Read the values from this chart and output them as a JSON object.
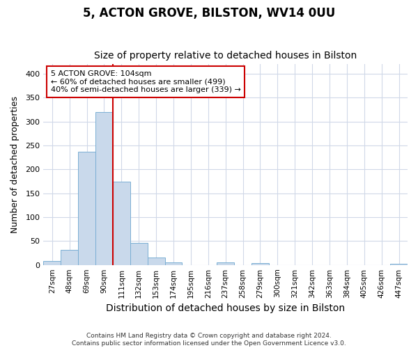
{
  "title": "5, ACTON GROVE, BILSTON, WV14 0UU",
  "subtitle": "Size of property relative to detached houses in Bilston",
  "xlabel": "Distribution of detached houses by size in Bilston",
  "ylabel": "Number of detached properties",
  "bar_labels": [
    "27sqm",
    "48sqm",
    "69sqm",
    "90sqm",
    "111sqm",
    "132sqm",
    "153sqm",
    "174sqm",
    "195sqm",
    "216sqm",
    "237sqm",
    "258sqm",
    "279sqm",
    "300sqm",
    "321sqm",
    "342sqm",
    "363sqm",
    "384sqm",
    "405sqm",
    "426sqm",
    "447sqm"
  ],
  "bar_values": [
    8,
    32,
    237,
    320,
    175,
    46,
    15,
    5,
    0,
    0,
    5,
    0,
    4,
    0,
    0,
    0,
    0,
    0,
    0,
    0,
    3
  ],
  "bar_color": "#c9d9eb",
  "bar_edgecolor": "#7aafd4",
  "vline_x_index": 3.5,
  "vline_color": "#cc0000",
  "annotation_text": "5 ACTON GROVE: 104sqm\n← 60% of detached houses are smaller (499)\n40% of semi-detached houses are larger (339) →",
  "annotation_box_color": "#ffffff",
  "annotation_box_edgecolor": "#cc0000",
  "ylim": [
    0,
    420
  ],
  "yticks": [
    0,
    50,
    100,
    150,
    200,
    250,
    300,
    350,
    400
  ],
  "footnote": "Contains HM Land Registry data © Crown copyright and database right 2024.\nContains public sector information licensed under the Open Government Licence v3.0.",
  "background_color": "#ffffff",
  "plot_background_color": "#ffffff",
  "grid_color": "#d0d8e8",
  "title_fontsize": 12,
  "subtitle_fontsize": 10,
  "axis_label_fontsize": 9,
  "tick_fontsize": 7.5,
  "annotation_fontsize": 8,
  "footnote_fontsize": 6.5
}
